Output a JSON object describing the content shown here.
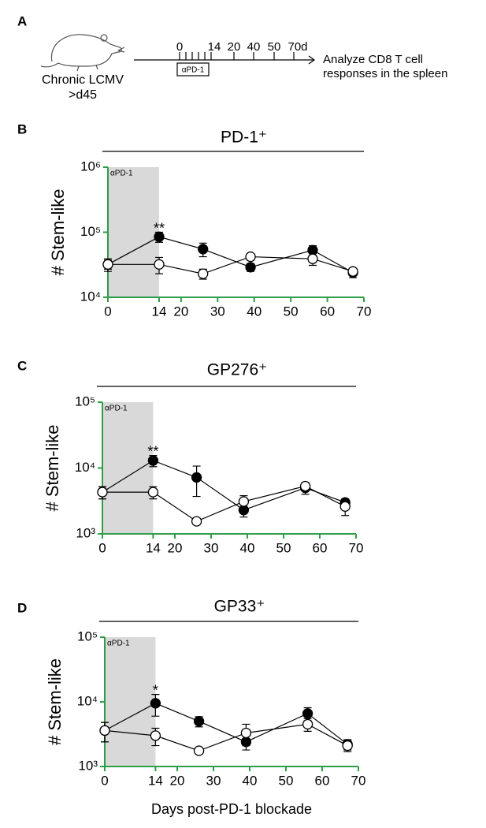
{
  "panel_a": {
    "label": "A",
    "infection": "Chronic LCMV",
    "timepoint": ">d45",
    "timeline_ticks": [
      "0",
      "14",
      "20",
      "40",
      "50",
      "70d"
    ],
    "treatment": "αPD-1",
    "readout": [
      "Analyze CD8 T cell",
      "responses in the spleen"
    ]
  },
  "chart_data": [
    {
      "type": "line",
      "panel": "B",
      "title": "PD-1⁺",
      "ylabel": "# Stem-like",
      "log_y": true,
      "axis_color": "#2e9e48",
      "shade": {
        "label": "αPD-1",
        "x": [
          0,
          14
        ],
        "color": "#d9d9d9"
      },
      "x": [
        0,
        14,
        26,
        39,
        56,
        67
      ],
      "xlim": [
        0,
        70
      ],
      "xticks": [
        0,
        14,
        20,
        30,
        40,
        50,
        60,
        70
      ],
      "ylim": [
        10000,
        1000000
      ],
      "yticks": [
        {
          "value": 10000,
          "label": "10⁴"
        },
        {
          "value": 100000,
          "label": "10⁵"
        },
        {
          "value": 1000000,
          "label": "10⁶"
        }
      ],
      "series": [
        {
          "color": "#000000",
          "fill": "#000000",
          "values": [
            32000,
            85000,
            55000,
            29000,
            53000,
            24000
          ],
          "errors": [
            5000,
            15000,
            13000,
            4000,
            9000,
            4000
          ]
        },
        {
          "color": "#000000",
          "fill": "#ffffff",
          "values": [
            32000,
            32000,
            23000,
            42000,
            39000,
            25000
          ],
          "errors": [
            7000,
            9000,
            4000,
            5000,
            8000,
            3000
          ]
        }
      ],
      "annotations": [
        {
          "text": "**",
          "x": 14
        }
      ]
    },
    {
      "type": "line",
      "panel": "C",
      "title": "GP276⁺",
      "ylabel": "# Stem-like",
      "log_y": true,
      "axis_color": "#2e9e48",
      "shade": {
        "label": "αPD-1",
        "x": [
          0,
          14
        ],
        "color": "#d9d9d9"
      },
      "x": [
        0,
        14,
        26,
        39,
        56,
        67
      ],
      "xlim": [
        0,
        70
      ],
      "xticks": [
        0,
        14,
        20,
        30,
        40,
        50,
        60,
        70
      ],
      "ylim": [
        1000,
        100000
      ],
      "yticks": [
        {
          "value": 1000,
          "label": "10³"
        },
        {
          "value": 10000,
          "label": "10⁴"
        },
        {
          "value": 100000,
          "label": "10⁵"
        }
      ],
      "series": [
        {
          "color": "#000000",
          "fill": "#000000",
          "values": [
            4300,
            13000,
            7200,
            2300,
            5000,
            3000
          ],
          "errors": [
            900,
            2500,
            3500,
            500,
            1000,
            400
          ]
        },
        {
          "color": "#000000",
          "fill": "#ffffff",
          "values": [
            4300,
            4300,
            1550,
            3100,
            5300,
            2600
          ],
          "errors": [
            900,
            900,
            0,
            700,
            700,
            700
          ]
        }
      ],
      "annotations": [
        {
          "text": "**",
          "x": 14
        }
      ]
    },
    {
      "type": "line",
      "panel": "D",
      "title": "GP33⁺",
      "ylabel": "# Stem-like",
      "xlabel": "Days post-PD-1 blockade",
      "log_y": true,
      "axis_color": "#2e9e48",
      "shade": {
        "label": "αPD-1",
        "x": [
          0,
          14
        ],
        "color": "#d9d9d9"
      },
      "x": [
        0,
        14,
        26,
        39,
        56,
        67
      ],
      "xlim": [
        0,
        70
      ],
      "xticks": [
        0,
        14,
        20,
        30,
        40,
        50,
        60,
        70
      ],
      "ylim": [
        1000,
        100000
      ],
      "yticks": [
        {
          "value": 1000,
          "label": "10³"
        },
        {
          "value": 10000,
          "label": "10⁴"
        },
        {
          "value": 100000,
          "label": "10⁵"
        }
      ],
      "series": [
        {
          "color": "#000000",
          "fill": "#000000",
          "values": [
            3600,
            9500,
            5000,
            2400,
            6600,
            2200
          ],
          "errors": [
            1200,
            3500,
            900,
            600,
            1500,
            400
          ]
        },
        {
          "color": "#000000",
          "fill": "#ffffff",
          "values": [
            3600,
            3000,
            1750,
            3300,
            4500,
            2100
          ],
          "errors": [
            1200,
            900,
            0,
            1200,
            1000,
            400
          ]
        }
      ],
      "annotations": [
        {
          "text": "*",
          "x": 14
        }
      ]
    }
  ]
}
